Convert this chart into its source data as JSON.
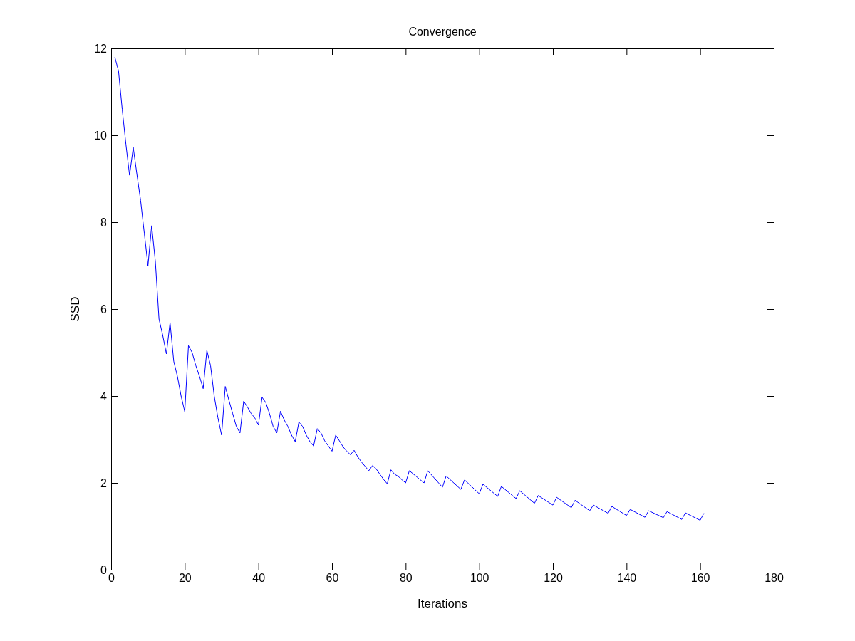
{
  "chart_data": {
    "type": "line",
    "title": "Convergence",
    "xlabel": "Iterations",
    "ylabel": "SSD",
    "xlim": [
      0,
      180
    ],
    "xticks": [
      0,
      20,
      40,
      60,
      80,
      100,
      120,
      140,
      160,
      180
    ],
    "ylim": [
      0,
      12
    ],
    "yticks": [
      0,
      2,
      4,
      6,
      8,
      10,
      12
    ],
    "series": [
      {
        "color": "#0000ff",
        "x": [
          1,
          2,
          3,
          4,
          5,
          6,
          7,
          8,
          9,
          10,
          11,
          12,
          13,
          14,
          15,
          16,
          17,
          18,
          19,
          20,
          21,
          22,
          23,
          24,
          25,
          26,
          27,
          28,
          29,
          30,
          31,
          32,
          33,
          34,
          35,
          36,
          37,
          38,
          39,
          40,
          41,
          42,
          43,
          44,
          45,
          46,
          47,
          48,
          49,
          50,
          51,
          52,
          53,
          54,
          55,
          56,
          57,
          58,
          59,
          60,
          61,
          62,
          63,
          64,
          65,
          66,
          67,
          68,
          69,
          70,
          71,
          72,
          73,
          74,
          75,
          76,
          77,
          78,
          79,
          80,
          81,
          85,
          86,
          90,
          91,
          95,
          96,
          100,
          101,
          105,
          106,
          110,
          111,
          115,
          116,
          120,
          121,
          125,
          126,
          130,
          131,
          135,
          136,
          140,
          141,
          145,
          146,
          150,
          151,
          155,
          156,
          160,
          161
        ],
        "values": [
          11.8,
          11.48,
          10.6,
          9.8,
          9.08,
          9.72,
          9.1,
          8.5,
          7.75,
          7.0,
          7.92,
          7.1,
          5.77,
          5.4,
          4.97,
          5.69,
          4.8,
          4.45,
          4.0,
          3.64,
          5.16,
          5.0,
          4.7,
          4.45,
          4.17,
          5.05,
          4.7,
          4.0,
          3.5,
          3.1,
          4.22,
          3.9,
          3.6,
          3.3,
          3.15,
          3.88,
          3.75,
          3.6,
          3.5,
          3.33,
          3.97,
          3.85,
          3.6,
          3.3,
          3.15,
          3.65,
          3.45,
          3.3,
          3.1,
          2.95,
          3.4,
          3.3,
          3.1,
          2.95,
          2.85,
          3.25,
          3.15,
          2.97,
          2.85,
          2.73,
          3.1,
          2.97,
          2.83,
          2.73,
          2.65,
          2.75,
          2.6,
          2.48,
          2.38,
          2.28,
          2.4,
          2.32,
          2.2,
          2.08,
          1.98,
          2.3,
          2.2,
          2.15,
          2.07,
          2.0,
          2.28,
          2.0,
          2.28,
          1.9,
          2.16,
          1.85,
          2.07,
          1.75,
          1.97,
          1.69,
          1.92,
          1.64,
          1.82,
          1.53,
          1.71,
          1.49,
          1.67,
          1.43,
          1.6,
          1.36,
          1.49,
          1.3,
          1.46,
          1.25,
          1.39,
          1.21,
          1.36,
          1.2,
          1.34,
          1.16,
          1.31,
          1.14,
          1.3
        ]
      }
    ]
  }
}
